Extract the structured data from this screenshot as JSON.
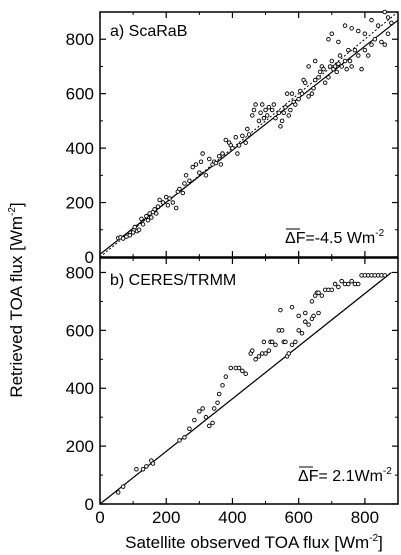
{
  "chart_data": [
    {
      "type": "scatter",
      "panel_label": "a) ScaRaB",
      "annotation": "F=-4.5 Wm",
      "annotation_exp": "-2",
      "annotation_symbol": "Δ",
      "xlim": [
        0,
        900
      ],
      "ylim": [
        0,
        900
      ],
      "y_ticks": [
        "0",
        "200",
        "400",
        "600",
        "800"
      ],
      "fit_line": [
        [
          0,
          10
        ],
        [
          900,
          870
        ]
      ],
      "one_to_one_line": [
        [
          0,
          0
        ],
        [
          900,
          900
        ]
      ],
      "points": [
        [
          55,
          70
        ],
        [
          62,
          72
        ],
        [
          70,
          68
        ],
        [
          80,
          75
        ],
        [
          90,
          80
        ],
        [
          100,
          90
        ],
        [
          105,
          110
        ],
        [
          112,
          95
        ],
        [
          118,
          100
        ],
        [
          125,
          140
        ],
        [
          130,
          120
        ],
        [
          140,
          150
        ],
        [
          145,
          135
        ],
        [
          150,
          160
        ],
        [
          155,
          145
        ],
        [
          160,
          165
        ],
        [
          165,
          175
        ],
        [
          170,
          160
        ],
        [
          175,
          185
        ],
        [
          180,
          210
        ],
        [
          190,
          200
        ],
        [
          200,
          220
        ],
        [
          205,
          190
        ],
        [
          210,
          215
        ],
        [
          220,
          200
        ],
        [
          230,
          180
        ],
        [
          235,
          240
        ],
        [
          240,
          250
        ],
        [
          250,
          235
        ],
        [
          255,
          270
        ],
        [
          260,
          300
        ],
        [
          270,
          280
        ],
        [
          280,
          330
        ],
        [
          290,
          340
        ],
        [
          300,
          310
        ],
        [
          305,
          350
        ],
        [
          310,
          380
        ],
        [
          320,
          300
        ],
        [
          330,
          360
        ],
        [
          340,
          340
        ],
        [
          345,
          350
        ],
        [
          350,
          345
        ],
        [
          360,
          370
        ],
        [
          365,
          340
        ],
        [
          370,
          380
        ],
        [
          380,
          430
        ],
        [
          390,
          420
        ],
        [
          395,
          410
        ],
        [
          400,
          400
        ],
        [
          410,
          440
        ],
        [
          415,
          380
        ],
        [
          420,
          410
        ],
        [
          430,
          445
        ],
        [
          440,
          420
        ],
        [
          445,
          470
        ],
        [
          450,
          450
        ],
        [
          460,
          520
        ],
        [
          465,
          540
        ],
        [
          470,
          560
        ],
        [
          480,
          500
        ],
        [
          485,
          530
        ],
        [
          490,
          560
        ],
        [
          495,
          510
        ],
        [
          500,
          540
        ],
        [
          505,
          520
        ],
        [
          510,
          550
        ],
        [
          520,
          540
        ],
        [
          525,
          560
        ],
        [
          530,
          510
        ],
        [
          540,
          530
        ],
        [
          545,
          480
        ],
        [
          550,
          500
        ],
        [
          555,
          530
        ],
        [
          560,
          550
        ],
        [
          565,
          600
        ],
        [
          570,
          520
        ],
        [
          575,
          540
        ],
        [
          580,
          600
        ],
        [
          585,
          570
        ],
        [
          590,
          560
        ],
        [
          600,
          580
        ],
        [
          605,
          610
        ],
        [
          610,
          600
        ],
        [
          615,
          650
        ],
        [
          620,
          640
        ],
        [
          630,
          590
        ],
        [
          640,
          600
        ],
        [
          645,
          620
        ],
        [
          650,
          650
        ],
        [
          660,
          660
        ],
        [
          665,
          680
        ],
        [
          670,
          700
        ],
        [
          675,
          690
        ],
        [
          680,
          640
        ],
        [
          690,
          660
        ],
        [
          695,
          700
        ],
        [
          700,
          720
        ],
        [
          705,
          690
        ],
        [
          710,
          700
        ],
        [
          715,
          680
        ],
        [
          720,
          710
        ],
        [
          725,
          740
        ],
        [
          730,
          700
        ],
        [
          740,
          720
        ],
        [
          745,
          690
        ],
        [
          750,
          760
        ],
        [
          755,
          720
        ],
        [
          760,
          700
        ],
        [
          770,
          760
        ],
        [
          780,
          740
        ],
        [
          790,
          690
        ],
        [
          800,
          760
        ],
        [
          810,
          740
        ],
        [
          820,
          780
        ],
        [
          830,
          800
        ],
        [
          840,
          850
        ],
        [
          850,
          790
        ],
        [
          860,
          780
        ],
        [
          870,
          820
        ],
        [
          880,
          860
        ],
        [
          740,
          850
        ],
        [
          780,
          830
        ],
        [
          800,
          820
        ],
        [
          820,
          870
        ],
        [
          760,
          840
        ],
        [
          700,
          820
        ],
        [
          690,
          800
        ],
        [
          720,
          790
        ],
        [
          650,
          720
        ],
        [
          630,
          700
        ],
        [
          860,
          900
        ],
        [
          870,
          880
        ]
      ]
    },
    {
      "type": "scatter",
      "panel_label": "b) CERES/TRMM",
      "annotation": "F= 2.1Wm",
      "annotation_exp": "-2",
      "annotation_symbol": "Δ",
      "xlim": [
        0,
        900
      ],
      "ylim": [
        0,
        850
      ],
      "x_ticks": [
        "0",
        "200",
        "400",
        "600",
        "800"
      ],
      "y_ticks": [
        "0",
        "200",
        "400",
        "600",
        "800"
      ],
      "fit_line": [
        [
          0,
          0
        ],
        [
          880,
          800
        ]
      ],
      "one_to_one_line": [
        [
          0,
          0
        ],
        [
          880,
          800
        ]
      ],
      "points": [
        [
          55,
          40
        ],
        [
          70,
          60
        ],
        [
          110,
          120
        ],
        [
          130,
          120
        ],
        [
          140,
          130
        ],
        [
          155,
          150
        ],
        [
          160,
          140
        ],
        [
          240,
          220
        ],
        [
          255,
          230
        ],
        [
          270,
          260
        ],
        [
          285,
          290
        ],
        [
          300,
          320
        ],
        [
          310,
          330
        ],
        [
          320,
          300
        ],
        [
          330,
          270
        ],
        [
          340,
          280
        ],
        [
          345,
          330
        ],
        [
          355,
          350
        ],
        [
          360,
          380
        ],
        [
          370,
          410
        ],
        [
          380,
          440
        ],
        [
          395,
          470
        ],
        [
          410,
          470
        ],
        [
          420,
          470
        ],
        [
          430,
          460
        ],
        [
          440,
          450
        ],
        [
          455,
          520
        ],
        [
          460,
          530
        ],
        [
          470,
          500
        ],
        [
          480,
          510
        ],
        [
          490,
          520
        ],
        [
          495,
          560
        ],
        [
          500,
          520
        ],
        [
          510,
          530
        ],
        [
          515,
          560
        ],
        [
          520,
          560
        ],
        [
          530,
          550
        ],
        [
          540,
          600
        ],
        [
          545,
          670
        ],
        [
          550,
          600
        ],
        [
          555,
          560
        ],
        [
          560,
          560
        ],
        [
          565,
          510
        ],
        [
          570,
          520
        ],
        [
          580,
          550
        ],
        [
          590,
          560
        ],
        [
          600,
          600
        ],
        [
          610,
          590
        ],
        [
          620,
          630
        ],
        [
          630,
          620
        ],
        [
          640,
          640
        ],
        [
          645,
          650
        ],
        [
          650,
          720
        ],
        [
          655,
          730
        ],
        [
          660,
          730
        ],
        [
          670,
          720
        ],
        [
          680,
          740
        ],
        [
          690,
          740
        ],
        [
          700,
          740
        ],
        [
          710,
          760
        ],
        [
          720,
          750
        ],
        [
          730,
          770
        ],
        [
          740,
          760
        ],
        [
          750,
          760
        ],
        [
          760,
          770
        ],
        [
          770,
          760
        ],
        [
          780,
          760
        ],
        [
          790,
          790
        ],
        [
          800,
          790
        ],
        [
          810,
          790
        ],
        [
          820,
          790
        ],
        [
          830,
          790
        ],
        [
          840,
          790
        ],
        [
          850,
          790
        ],
        [
          860,
          790
        ],
        [
          580,
          680
        ],
        [
          600,
          650
        ],
        [
          620,
          660
        ],
        [
          640,
          700
        ],
        [
          660,
          660
        ]
      ]
    }
  ],
  "shared": {
    "ylabel": "Retrieved TOA flux [Wm",
    "ylabel_exp": "-2",
    "ylabel_end": "]",
    "xlabel": "Satellite observed TOA flux [Wm",
    "xlabel_exp": "-2",
    "xlabel_end": "]"
  }
}
